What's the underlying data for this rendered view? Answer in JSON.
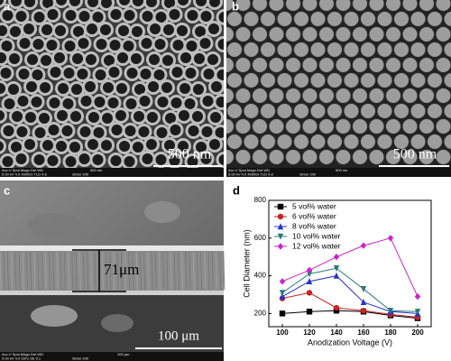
{
  "panels": [
    {
      "label": "a",
      "scale_bar": "500 nm",
      "info": [
        "Acc.V  Spot Magn   Det  WD",
        "5.00 kV 4.0  40000x TLD 4.8",
        "500 nm",
        "Sirion 200"
      ]
    },
    {
      "label": "b",
      "scale_bar": "500 nm",
      "info": [
        "Acc.V  Spot Magn   Det  WD",
        "5.00 kV 4.0  40000x TLD 4.8",
        "500 nm",
        "Sirion 200"
      ]
    },
    {
      "label": "c",
      "scale_bar": "100 μm",
      "thickness": "71μm",
      "info": [
        "Acc.V  Spot Magn   Det  WD",
        "5.00 kV 4.0  287x   SE  5.1",
        "100 μm",
        "Sirion 200"
      ]
    }
  ],
  "chart_data": {
    "type": "line",
    "label": "d",
    "xlabel": "Anodization Voltage (V)",
    "ylabel": "Cell Diameter (nm)",
    "x": [
      100,
      120,
      140,
      160,
      180,
      200
    ],
    "xlim": [
      90,
      210
    ],
    "xticks": [
      100,
      120,
      140,
      160,
      180,
      200
    ],
    "ylim": [
      130,
      800
    ],
    "yticks": [
      200,
      400,
      600,
      800
    ],
    "legend": "upper left",
    "series": [
      {
        "name": "5 vol% water",
        "color": "#000000",
        "marker": "square",
        "values": [
          200,
          210,
          215,
          210,
          190,
          175
        ]
      },
      {
        "name": "6 vol% water",
        "color": "#cc2222",
        "marker": "circle",
        "values": [
          280,
          310,
          230,
          215,
          195,
          180
        ]
      },
      {
        "name": "8 vol% water",
        "color": "#2233cc",
        "marker": "triangle-up",
        "values": [
          290,
          370,
          400,
          260,
          210,
          200
        ]
      },
      {
        "name": "10 vol% water",
        "color": "#2a7a7a",
        "marker": "triangle-down",
        "values": [
          310,
          410,
          440,
          330,
          215,
          210
        ]
      },
      {
        "name": "12 vol% water",
        "color": "#cc22cc",
        "marker": "diamond",
        "values": [
          370,
          430,
          500,
          560,
          600,
          290
        ]
      }
    ]
  }
}
